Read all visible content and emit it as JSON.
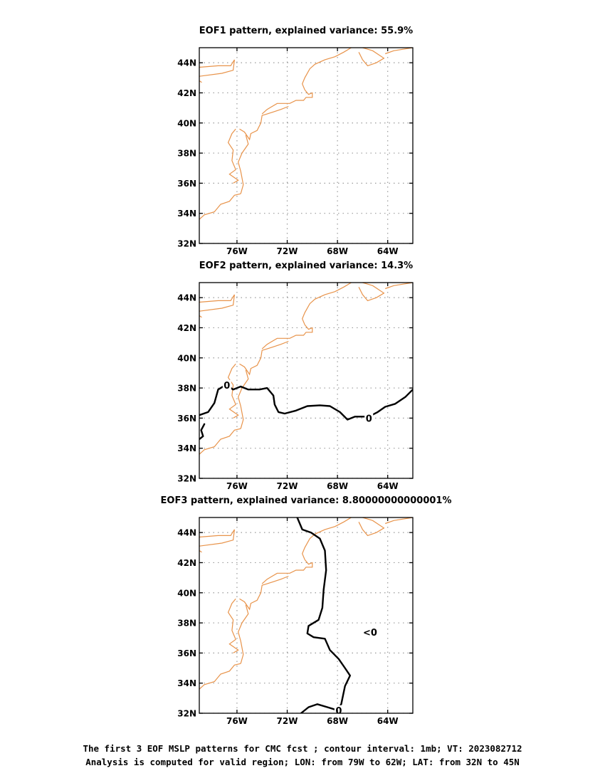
{
  "chart_data": [
    {
      "type": "contour-map",
      "title": "EOF1 pattern, explained variance: 55.9%",
      "x_range": [
        -79,
        -62
      ],
      "y_range": [
        32,
        45
      ],
      "x_ticks": [
        {
          "value": -76,
          "label": "76W"
        },
        {
          "value": -72,
          "label": "72W"
        },
        {
          "value": -68,
          "label": "68W"
        },
        {
          "value": -64,
          "label": "64W"
        }
      ],
      "y_ticks": [
        {
          "value": 32,
          "label": "32N"
        },
        {
          "value": 34,
          "label": "34N"
        },
        {
          "value": 36,
          "label": "36N"
        },
        {
          "value": 38,
          "label": "38N"
        },
        {
          "value": 40,
          "label": "40N"
        },
        {
          "value": 42,
          "label": "42N"
        },
        {
          "value": 44,
          "label": "44N"
        }
      ],
      "grid": "dotted",
      "contours": []
    },
    {
      "type": "contour-map",
      "title": "EOF2 pattern, explained variance: 14.3%",
      "x_range": [
        -79,
        -62
      ],
      "y_range": [
        32,
        45
      ],
      "x_ticks": [
        {
          "value": -76,
          "label": "76W"
        },
        {
          "value": -72,
          "label": "72W"
        },
        {
          "value": -68,
          "label": "68W"
        },
        {
          "value": -64,
          "label": "64W"
        }
      ],
      "y_ticks": [
        {
          "value": 32,
          "label": "32N"
        },
        {
          "value": 34,
          "label": "34N"
        },
        {
          "value": 36,
          "label": "36N"
        },
        {
          "value": 38,
          "label": "38N"
        },
        {
          "value": 40,
          "label": "40N"
        },
        {
          "value": 42,
          "label": "42N"
        },
        {
          "value": 44,
          "label": "44N"
        }
      ],
      "grid": "dotted",
      "contours": [
        {
          "level": 0,
          "points": [
            [
              -79,
              36.2
            ],
            [
              -78.3,
              36.4
            ],
            [
              -77.8,
              37
            ],
            [
              -77.5,
              37.9
            ],
            [
              -76.9,
              38.2
            ],
            [
              -76.3,
              37.9
            ],
            [
              -75.7,
              38.1
            ],
            [
              -75.1,
              37.9
            ],
            [
              -74.2,
              37.9
            ],
            [
              -73.6,
              38
            ],
            [
              -73.1,
              37.5
            ],
            [
              -73,
              36.9
            ],
            [
              -72.7,
              36.4
            ],
            [
              -72.2,
              36.3
            ],
            [
              -71.3,
              36.5
            ],
            [
              -70.4,
              36.8
            ],
            [
              -69.4,
              36.85
            ],
            [
              -68.6,
              36.8
            ],
            [
              -67.8,
              36.4
            ],
            [
              -67.2,
              35.9
            ],
            [
              -66.6,
              36.1
            ],
            [
              -65.5,
              36.1
            ],
            [
              -64.8,
              36.4
            ],
            [
              -64.2,
              36.75
            ],
            [
              -63.4,
              36.95
            ],
            [
              -62.6,
              37.4
            ],
            [
              -62,
              37.9
            ]
          ],
          "labels": [
            {
              "text": "0",
              "lon": -76.8,
              "lat": 38.2
            },
            {
              "text": "0",
              "lon": -65.5,
              "lat": 36.0
            }
          ]
        },
        {
          "level": 0,
          "points": [
            [
              -78.6,
              35.6
            ],
            [
              -78.85,
              35.2
            ],
            [
              -78.7,
              34.8
            ],
            [
              -79,
              34.6
            ]
          ],
          "labels": []
        }
      ]
    },
    {
      "type": "contour-map",
      "title": "EOF3 pattern, explained variance: 8.80000000000001%",
      "x_range": [
        -79,
        -62
      ],
      "y_range": [
        32,
        45
      ],
      "x_ticks": [
        {
          "value": -76,
          "label": "76W"
        },
        {
          "value": -72,
          "label": "72W"
        },
        {
          "value": -68,
          "label": "68W"
        },
        {
          "value": -64,
          "label": "64W"
        }
      ],
      "y_ticks": [
        {
          "value": 32,
          "label": "32N"
        },
        {
          "value": 34,
          "label": "34N"
        },
        {
          "value": 36,
          "label": "36N"
        },
        {
          "value": 38,
          "label": "38N"
        },
        {
          "value": 40,
          "label": "40N"
        },
        {
          "value": 42,
          "label": "42N"
        },
        {
          "value": 44,
          "label": "44N"
        }
      ],
      "grid": "dotted",
      "contours": [
        {
          "level": 0,
          "points": [
            [
              -71.2,
              45
            ],
            [
              -70.8,
              44.2
            ],
            [
              -70.1,
              44
            ],
            [
              -69.4,
              43.6
            ],
            [
              -69,
              42.8
            ],
            [
              -68.9,
              41.5
            ],
            [
              -69.1,
              40.2
            ],
            [
              -69.2,
              39
            ],
            [
              -69.5,
              38.2
            ],
            [
              -70.3,
              37.8
            ],
            [
              -70.4,
              37.3
            ],
            [
              -69.9,
              37.05
            ],
            [
              -69,
              36.95
            ],
            [
              -68.6,
              36.2
            ],
            [
              -67.9,
              35.6
            ],
            [
              -67.4,
              35
            ],
            [
              -67,
              34.5
            ],
            [
              -67.4,
              33.8
            ],
            [
              -67.7,
              32.6
            ],
            [
              -68,
              32.2
            ],
            [
              -68.8,
              32.4
            ],
            [
              -69.6,
              32.6
            ],
            [
              -70.3,
              32.4
            ],
            [
              -70.9,
              32
            ]
          ],
          "labels": [
            {
              "text": "0",
              "lon": -67.9,
              "lat": 32.2
            },
            {
              "text": "<0",
              "lon": -65.4,
              "lat": 37.4
            }
          ]
        }
      ]
    }
  ],
  "coastline": [
    [
      [
        -79,
        43.7
      ],
      [
        -77.5,
        43.8
      ],
      [
        -76.5,
        43.8
      ],
      [
        -76.2,
        44.2
      ],
      [
        -76.3,
        43.5
      ],
      [
        -77.2,
        43.3
      ],
      [
        -79,
        43.1
      ]
    ],
    [
      [
        -79,
        42.8
      ],
      [
        -78.8,
        42.7
      ]
    ],
    [
      [
        -79,
        33.6
      ],
      [
        -78.6,
        33.9
      ],
      [
        -77.8,
        34.1
      ],
      [
        -77.3,
        34.6
      ],
      [
        -76.6,
        34.8
      ],
      [
        -76.2,
        35.2
      ],
      [
        -75.7,
        35.3
      ]
    ],
    [
      [
        -75.7,
        35.3
      ],
      [
        -75.5,
        35.9
      ],
      [
        -75.7,
        36.8
      ],
      [
        -75.9,
        37.4
      ],
      [
        -75.6,
        38.0
      ],
      [
        -75.1,
        38.6
      ],
      [
        -75.3,
        39.2
      ]
    ],
    [
      [
        -76.3,
        36
      ],
      [
        -75.9,
        36.2
      ],
      [
        -76.6,
        36.6
      ],
      [
        -76.1,
        36.9
      ],
      [
        -76.4,
        37.5
      ],
      [
        -76.3,
        38.2
      ],
      [
        -76.7,
        38.7
      ],
      [
        -76.4,
        39.3
      ],
      [
        -76.1,
        39.6
      ]
    ],
    [
      [
        -75.8,
        39.6
      ],
      [
        -75.4,
        39.4
      ],
      [
        -75.0,
        38.9
      ],
      [
        -74.9,
        39.3
      ],
      [
        -74.4,
        39.5
      ],
      [
        -74.1,
        40.0
      ],
      [
        -74.0,
        40.5
      ],
      [
        -73.6,
        40.6
      ],
      [
        -72.5,
        40.9
      ],
      [
        -71.9,
        41.1
      ]
    ],
    [
      [
        -74.0,
        40.6
      ],
      [
        -73.6,
        40.9
      ],
      [
        -72.8,
        41.3
      ],
      [
        -71.8,
        41.3
      ],
      [
        -71.3,
        41.5
      ],
      [
        -70.7,
        41.5
      ],
      [
        -70.5,
        41.7
      ],
      [
        -70.0,
        41.7
      ],
      [
        -70.0,
        42.0
      ],
      [
        -70.3,
        41.9
      ],
      [
        -70.6,
        42.2
      ]
    ],
    [
      [
        -70.6,
        42.2
      ],
      [
        -70.8,
        42.6
      ],
      [
        -70.6,
        43.0
      ],
      [
        -70.2,
        43.6
      ],
      [
        -69.8,
        43.9
      ],
      [
        -69.0,
        44.2
      ],
      [
        -68.2,
        44.4
      ],
      [
        -67.5,
        44.7
      ],
      [
        -66.9,
        45.0
      ]
    ],
    [
      [
        -66.0,
        45.0
      ],
      [
        -65.2,
        44.8
      ],
      [
        -64.3,
        44.3
      ],
      [
        -64.9,
        44.0
      ],
      [
        -65.6,
        43.8
      ],
      [
        -66.0,
        44.2
      ],
      [
        -66.3,
        44.7
      ]
    ],
    [
      [
        -64.2,
        44.6
      ],
      [
        -63.5,
        44.8
      ],
      [
        -62.0,
        45.0
      ]
    ]
  ],
  "footer": {
    "line1": "The first 3 EOF MSLP patterns for CMC fcst ; contour interval: 1mb; VT: 2023082712",
    "line2": "Analysis is computed for valid region; LON: from 79W to 62W; LAT: from 32N to 45N"
  },
  "colors": {
    "coastline": "#e8934a",
    "contour": "#000000",
    "grid": "#999999",
    "frame": "#000000"
  }
}
